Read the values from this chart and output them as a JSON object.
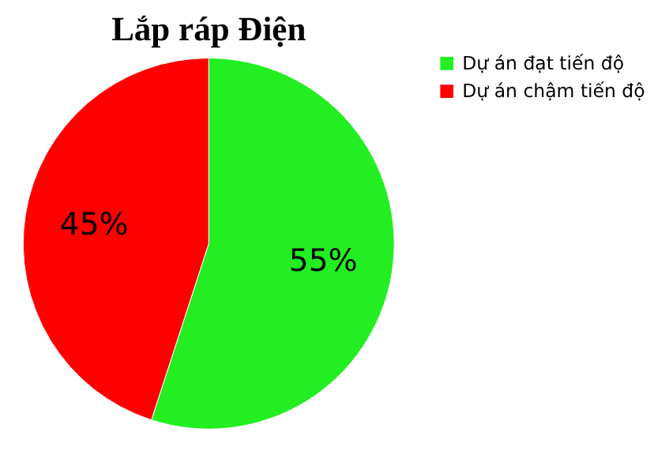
{
  "chart_data": {
    "type": "pie",
    "title": "Lắp ráp Điện",
    "categories": [
      "Dự án đạt tiến độ",
      "Dự án chậm tiến độ"
    ],
    "values": [
      55,
      45
    ],
    "colors": [
      "#22ee22",
      "#ff0000"
    ],
    "value_labels": [
      "55%",
      "45%"
    ],
    "legend": "right"
  }
}
